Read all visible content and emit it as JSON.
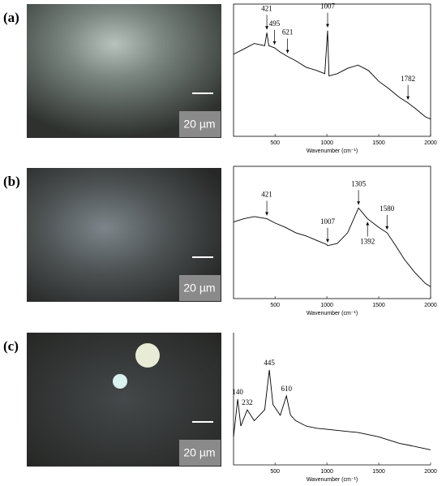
{
  "panels": [
    {
      "label": "(a)",
      "scale_bar": "20 µm"
    },
    {
      "label": "(b)",
      "scale_bar": "20 µm"
    },
    {
      "label": "(c)",
      "scale_bar": "20 µm"
    }
  ],
  "chart_data": [
    {
      "type": "line",
      "x_label": "Wavenumber (cm⁻¹)",
      "xlim": [
        100,
        2000
      ],
      "xticks": [
        500,
        1000,
        1500,
        2000
      ],
      "ylim": [
        0,
        100
      ],
      "color": "#000000",
      "box": true,
      "arrows": true,
      "x": [
        100,
        200,
        300,
        400,
        421,
        440,
        495,
        550,
        621,
        700,
        800,
        900,
        980,
        1007,
        1020,
        1100,
        1200,
        1300,
        1400,
        1500,
        1600,
        1700,
        1782,
        1850,
        1950,
        2000
      ],
      "values": [
        70,
        75,
        80,
        78,
        90,
        78,
        76,
        72,
        68,
        64,
        58,
        55,
        52,
        92,
        50,
        52,
        57,
        60,
        55,
        45,
        38,
        30,
        25,
        20,
        12,
        10
      ],
      "annotations": [
        {
          "x": 421
        },
        {
          "x": 495
        },
        {
          "x": 621
        },
        {
          "x": 1007
        },
        {
          "x": 1782
        }
      ]
    },
    {
      "type": "line",
      "x_label": "Wavenumber (cm⁻¹)",
      "xlim": [
        100,
        2000
      ],
      "xticks": [
        500,
        1000,
        1500,
        2000
      ],
      "ylim": [
        0,
        100
      ],
      "color": "#000000",
      "box": true,
      "arrows": true,
      "x": [
        100,
        200,
        300,
        421,
        500,
        600,
        700,
        800,
        900,
        1000,
        1007,
        1100,
        1200,
        1305,
        1392,
        1500,
        1580,
        1650,
        1750,
        1850,
        1950,
        2000
      ],
      "values": [
        65,
        68,
        70,
        68,
        64,
        60,
        55,
        52,
        48,
        44,
        43,
        45,
        55,
        78,
        68,
        60,
        55,
        45,
        30,
        18,
        8,
        5
      ],
      "annotations": [
        {
          "x": 421
        },
        {
          "x": 1007
        },
        {
          "x": 1305
        },
        {
          "x": 1392,
          "position": "below"
        },
        {
          "x": 1580
        }
      ]
    },
    {
      "type": "line",
      "x_label": "Wavenumber (cm⁻¹)",
      "xlim": [
        100,
        2000
      ],
      "xticks": [
        500,
        1000,
        1500,
        2000
      ],
      "ylim": [
        0,
        100
      ],
      "color": "#000000",
      "box": false,
      "arrows": false,
      "x": [
        100,
        140,
        170,
        232,
        300,
        400,
        445,
        480,
        550,
        610,
        650,
        700,
        800,
        900,
        1000,
        1100,
        1200,
        1300,
        1400,
        1500,
        1600,
        1700,
        1800,
        1900,
        2000
      ],
      "values": [
        20,
        55,
        30,
        45,
        35,
        45,
        82,
        50,
        40,
        58,
        40,
        35,
        30,
        28,
        27,
        26,
        25,
        24,
        22,
        20,
        17,
        14,
        12,
        10,
        8
      ],
      "annotations": [
        {
          "x": 140
        },
        {
          "x": 232
        },
        {
          "x": 445
        },
        {
          "x": 610
        }
      ]
    }
  ]
}
